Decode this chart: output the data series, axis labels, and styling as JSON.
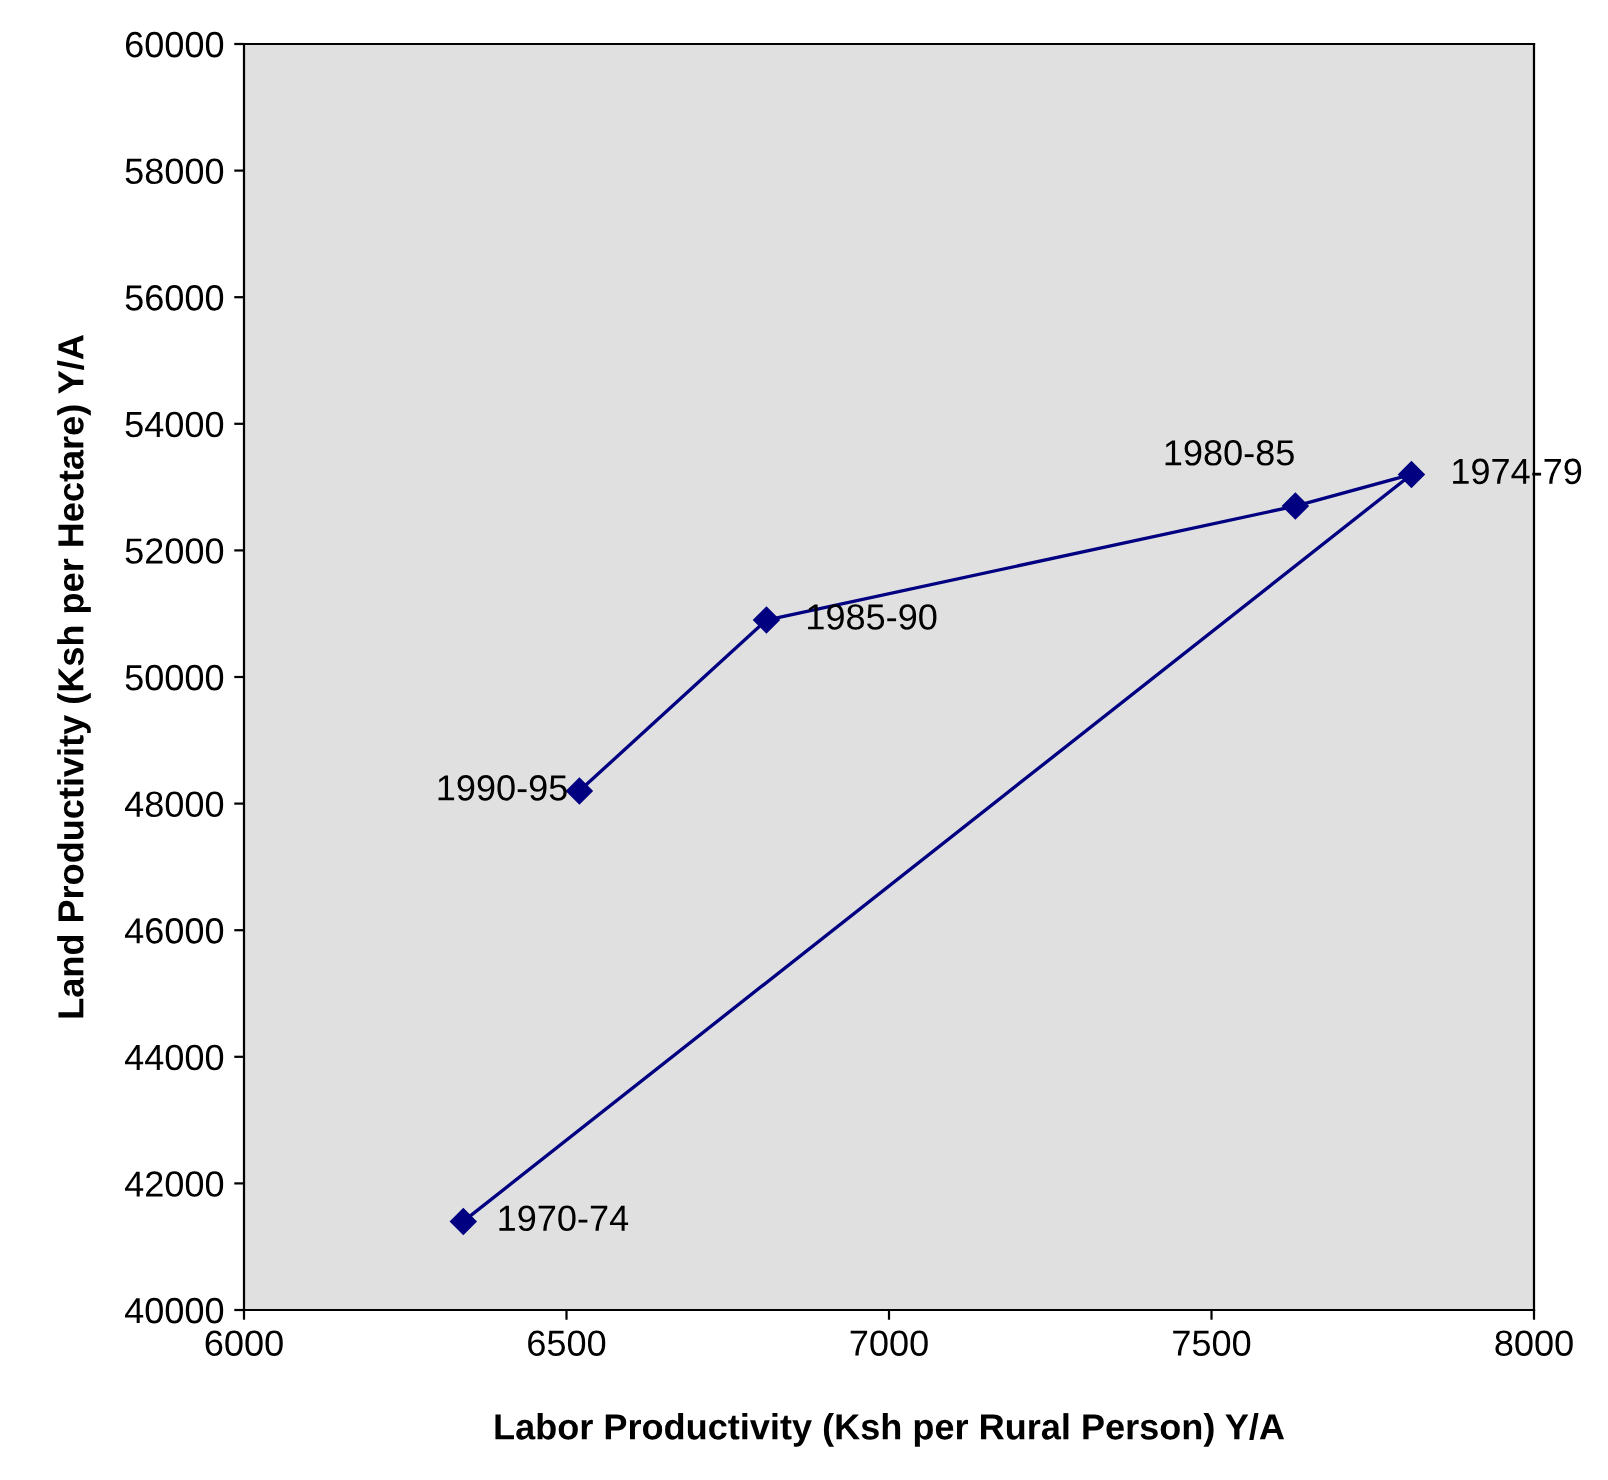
{
  "chart_data": {
    "type": "line",
    "xlabel": "Labor Productivity (Ksh per Rural Person) Y/A",
    "ylabel": "Land Productivity (Ksh per Hectare) Y/A",
    "series": [
      {
        "color": "#000080",
        "x": [
          6340,
          7810,
          7630,
          6810,
          6520
        ],
        "values": [
          41400,
          53200,
          52700,
          50900,
          48200
        ]
      }
    ],
    "marker": "diamond",
    "line_style": "solid",
    "grid": false,
    "legend": false,
    "xlim": [
      6000,
      8000
    ],
    "xticks": [
      6000,
      6500,
      7000,
      7500,
      8000
    ],
    "ylim": [
      40000,
      60000
    ],
    "yticks": [
      40000,
      42000,
      44000,
      46000,
      48000,
      50000,
      52000,
      54000,
      56000,
      58000,
      60000
    ],
    "annotations": [
      {
        "text": "1970-74",
        "x": 6340,
        "y": 41400
      },
      {
        "text": "1974-79",
        "x": 7810,
        "y": 53200
      },
      {
        "text": "1980-85",
        "x": 7630,
        "y": 52700
      },
      {
        "text": "1985-90",
        "x": 6810,
        "y": 50900
      },
      {
        "text": "1990-95",
        "x": 6520,
        "y": 48200
      }
    ]
  }
}
